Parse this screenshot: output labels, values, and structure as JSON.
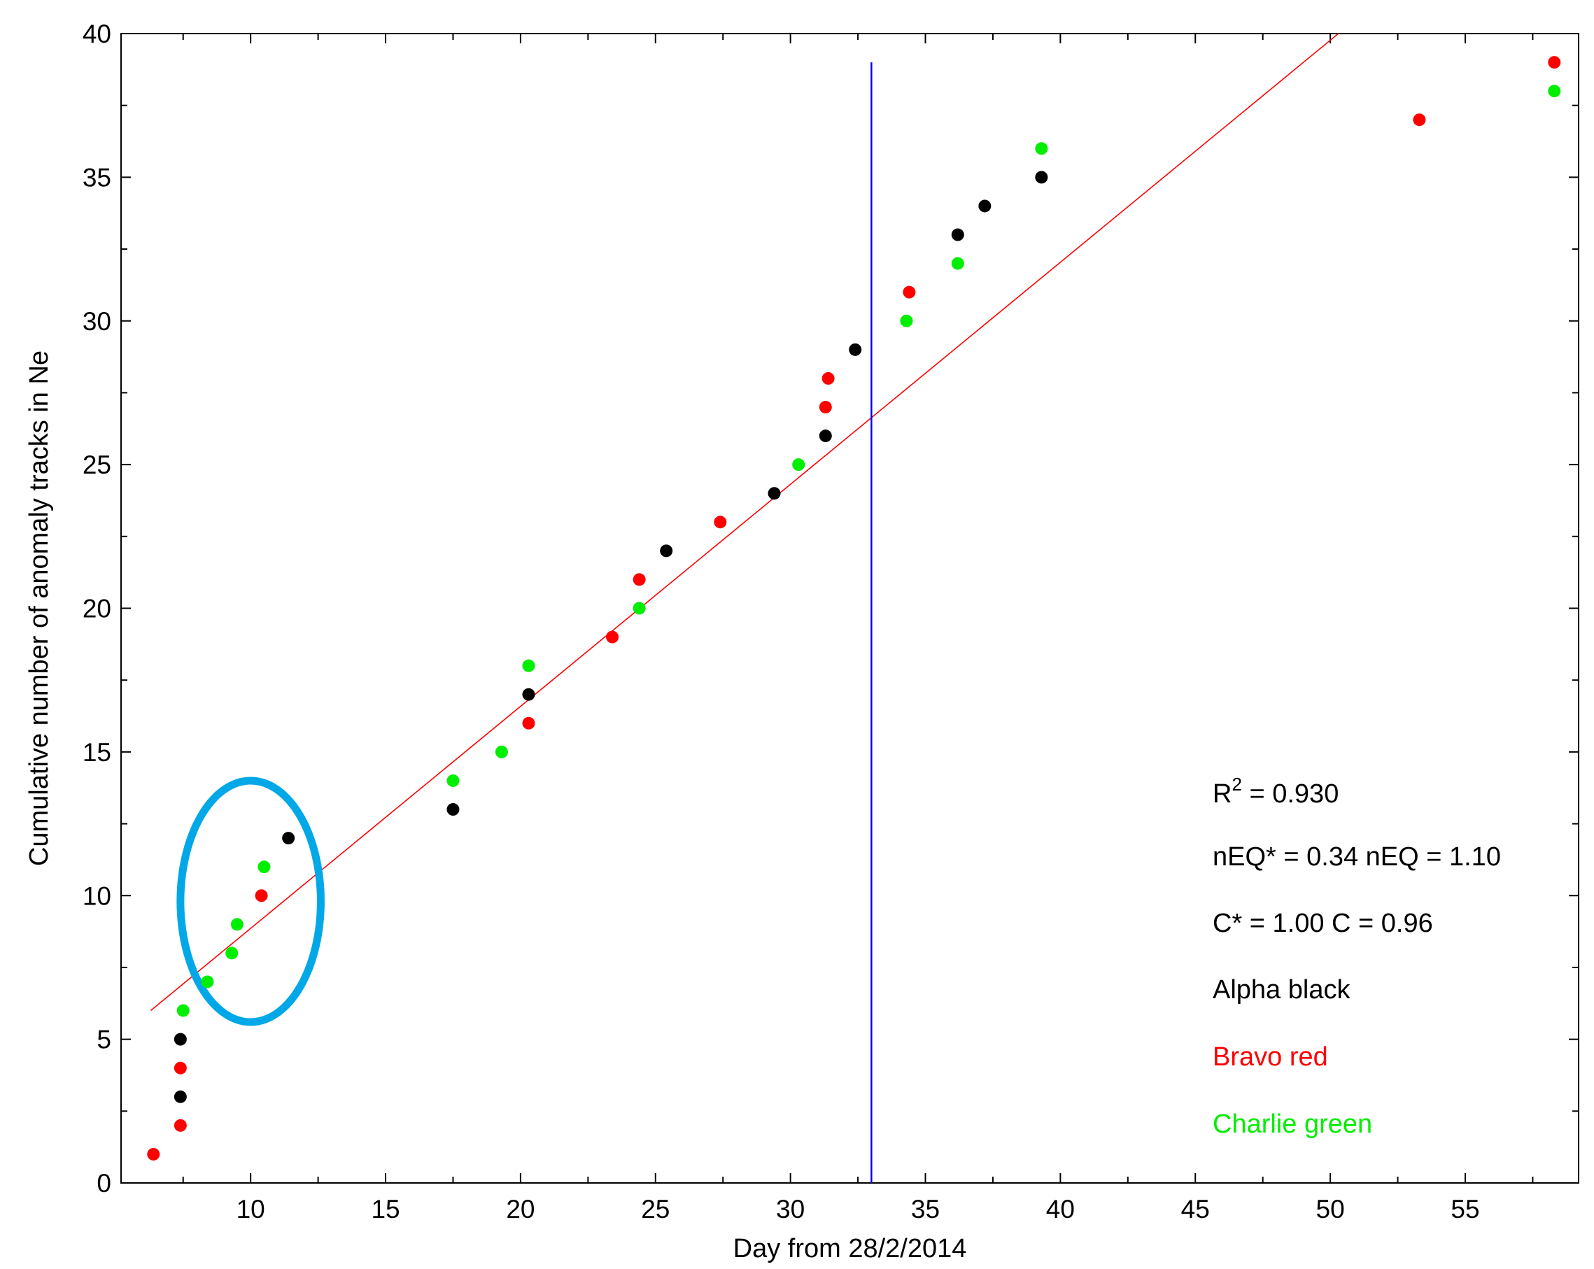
{
  "chart_data": {
    "type": "scatter",
    "title": "",
    "xlabel": "Day from 28/2/2014",
    "ylabel": "Cumulative number of anomaly tracks in Ne",
    "xlim": [
      5.2,
      59.2
    ],
    "ylim": [
      0,
      40
    ],
    "xticks": [
      10,
      15,
      20,
      25,
      30,
      35,
      40,
      45,
      50,
      55
    ],
    "yticks": [
      0,
      5,
      10,
      15,
      20,
      25,
      30,
      35,
      40
    ],
    "grid": false,
    "colors": {
      "alpha": "#000000",
      "bravo": "#ff0000",
      "charlie": "#00ee00",
      "fit": "#ff0000",
      "marker_line": "#0000ff",
      "highlight": "#00a8e8"
    },
    "series": [
      {
        "key": "alpha",
        "x": [
          7.4,
          7.4,
          11.4,
          17.5,
          20.3,
          25.4,
          29.4,
          31.3,
          32.4,
          36.2,
          37.2,
          39.3
        ],
        "y": [
          3,
          5,
          12,
          13,
          17,
          22,
          24,
          26,
          29,
          33,
          34,
          35
        ]
      },
      {
        "key": "bravo",
        "x": [
          6.4,
          7.4,
          7.4,
          10.4,
          20.3,
          23.4,
          24.4,
          27.4,
          31.3,
          31.4,
          34.4,
          53.3,
          58.3
        ],
        "y": [
          1,
          2,
          4,
          10,
          16,
          19,
          21,
          23,
          27,
          28,
          31,
          37,
          39
        ]
      },
      {
        "key": "charlie",
        "x": [
          7.5,
          8.4,
          9.3,
          9.5,
          10.5,
          17.5,
          19.3,
          20.3,
          24.4,
          30.3,
          34.3,
          36.2,
          39.3,
          58.3
        ],
        "y": [
          6,
          7,
          8,
          9,
          11,
          14,
          15,
          18,
          20,
          25,
          30,
          32,
          36,
          38
        ]
      }
    ],
    "fit_line": {
      "x": [
        6.3,
        50.3
      ],
      "y": [
        6,
        40
      ]
    },
    "vertical_line": {
      "x": 33,
      "y_top": 39
    },
    "highlight_ellipse": {
      "cx": 10,
      "cy": 9.8,
      "rx": 2.6,
      "ry": 4.2
    },
    "annotations": {
      "r2_base": "R",
      "r2_sup": "2",
      "r2_value": " = 0.930",
      "neq": "nEQ* = 0.34 nEQ = 1.10",
      "c": "C* = 1.00 C = 0.96",
      "legend_alpha": "Alpha black",
      "legend_bravo": "Bravo red",
      "legend_charlie": "Charlie green"
    }
  }
}
